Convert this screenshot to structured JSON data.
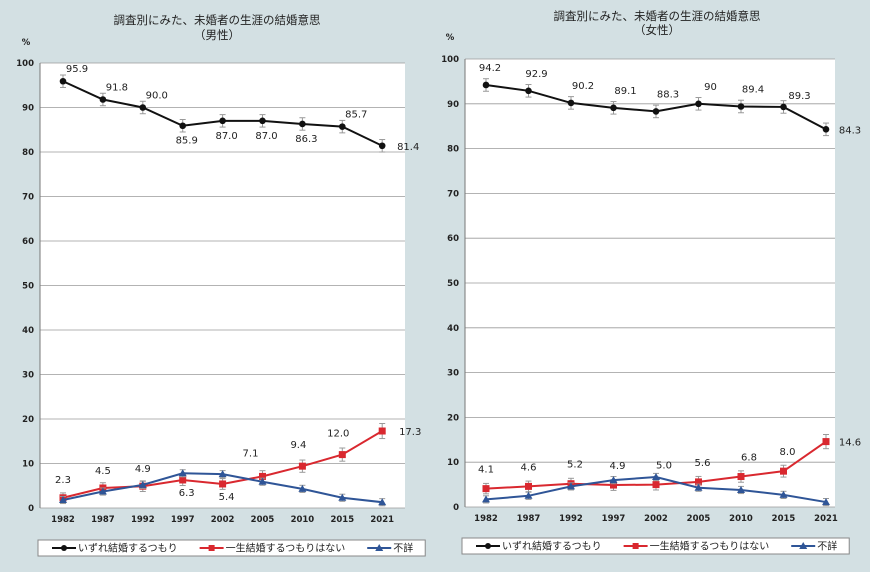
{
  "chart_data": [
    {
      "type": "line",
      "title": "調査別にみた、未婚者の生涯の結婚意思",
      "subtitle": "（男性）",
      "ylabel": "%",
      "ylim": [
        0,
        100
      ],
      "yticks": [
        0,
        10,
        20,
        30,
        40,
        50,
        60,
        70,
        80,
        90,
        100
      ],
      "categories": [
        "1982",
        "1987",
        "1992",
        "1997",
        "2002",
        "2005",
        "2010",
        "2015",
        "2021"
      ],
      "grid": true,
      "error_bars": true,
      "legend_placement": "bottom",
      "series": [
        {
          "name": "いずれ結婚するつもり",
          "color": "#111111",
          "marker": "circle",
          "values": [
            95.9,
            91.8,
            90.0,
            85.9,
            87.0,
            87.0,
            86.3,
            85.7,
            81.4
          ],
          "labels": [
            "95.9",
            "91.8",
            "90.0",
            "85.9",
            "87.0",
            "87.0",
            "86.3",
            "85.7",
            "81.4"
          ]
        },
        {
          "name": "一生結婚するつもりはない",
          "color": "#d9282f",
          "marker": "square",
          "values": [
            2.3,
            4.5,
            4.9,
            6.3,
            5.4,
            7.1,
            9.4,
            12.0,
            17.3
          ],
          "labels": [
            "2.3",
            "4.5",
            "4.9",
            "6.3",
            "5.4",
            "7.1",
            "9.4",
            "12.0",
            "17.3"
          ]
        },
        {
          "name": "不詳",
          "color": "#2f5597",
          "marker": "triangle",
          "values": [
            1.8,
            3.7,
            5.2,
            7.8,
            7.6,
            5.9,
            4.3,
            2.3,
            1.3
          ],
          "labels": []
        }
      ]
    },
    {
      "type": "line",
      "title": "調査別にみた、未婚者の生涯の結婚意思",
      "subtitle": "（女性）",
      "ylabel": "%",
      "ylim": [
        0,
        100
      ],
      "yticks": [
        0,
        10,
        20,
        30,
        40,
        50,
        60,
        70,
        80,
        90,
        100
      ],
      "categories": [
        "1982",
        "1987",
        "1992",
        "1997",
        "2002",
        "2005",
        "2010",
        "2015",
        "2021"
      ],
      "grid": true,
      "error_bars": true,
      "legend_placement": "bottom",
      "series": [
        {
          "name": "いずれ結婚するつもり",
          "color": "#111111",
          "marker": "circle",
          "values": [
            94.2,
            92.9,
            90.2,
            89.1,
            88.3,
            90.0,
            89.4,
            89.3,
            84.3
          ],
          "labels": [
            "94.2",
            "92.9",
            "90.2",
            "89.1",
            "88.3",
            "90",
            "89.4",
            "89.3",
            "84.3"
          ]
        },
        {
          "name": "一生結婚するつもりはない",
          "color": "#d9282f",
          "marker": "square",
          "values": [
            4.1,
            4.6,
            5.2,
            4.9,
            5.0,
            5.6,
            6.8,
            8.0,
            14.6
          ],
          "labels": [
            "4.1",
            "4.6",
            "5.2",
            "4.9",
            "5.0",
            "5.6",
            "6.8",
            "8.0",
            "14.6"
          ]
        },
        {
          "name": "不詳",
          "color": "#2f5597",
          "marker": "triangle",
          "values": [
            1.7,
            2.5,
            4.6,
            6.0,
            6.7,
            4.3,
            3.8,
            2.7,
            1.1
          ],
          "labels": []
        }
      ]
    }
  ]
}
